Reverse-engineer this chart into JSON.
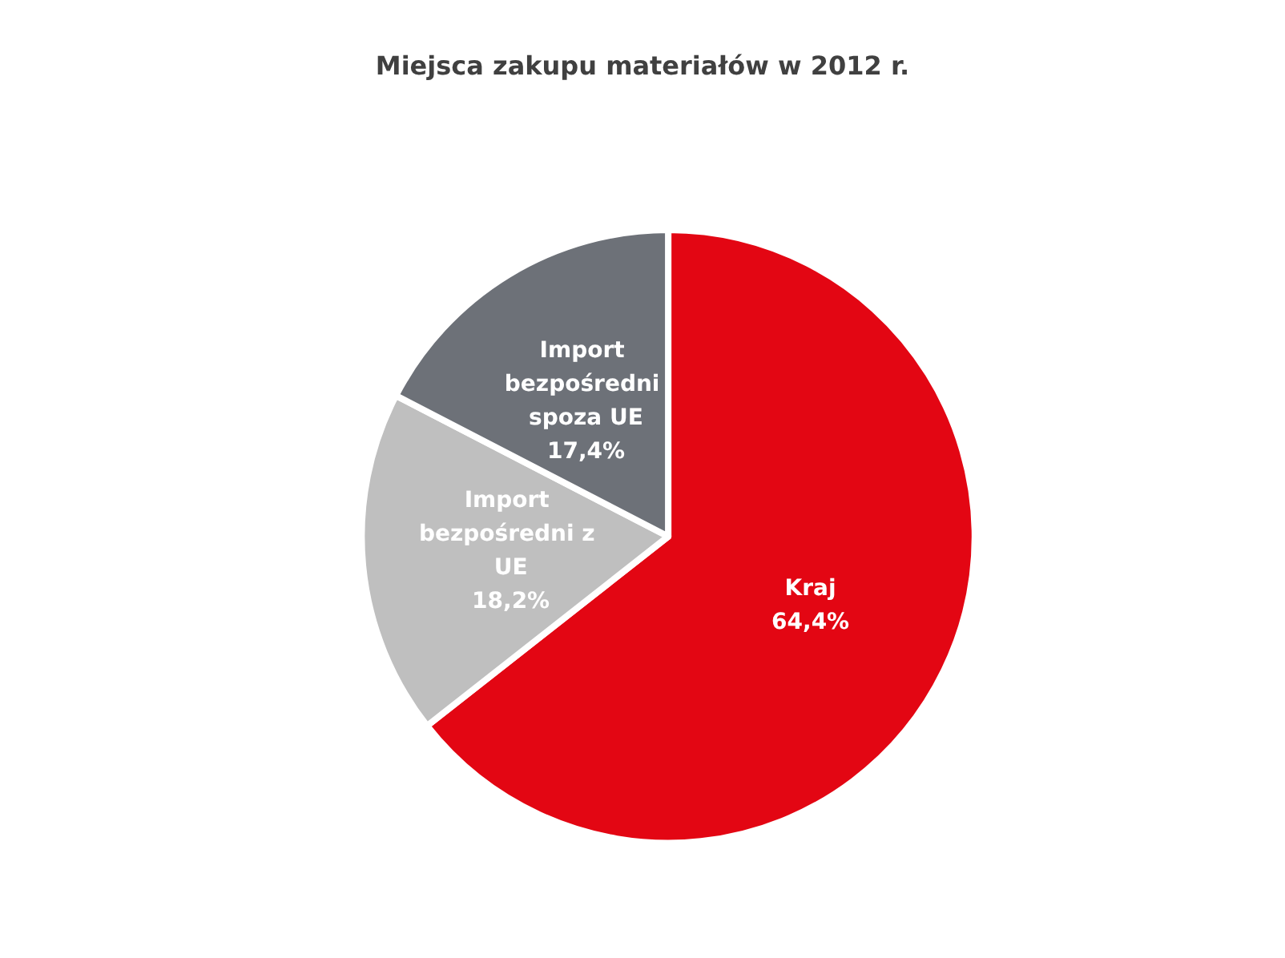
{
  "chart_data": {
    "type": "pie",
    "title": "Miejsca zakupu materiałów w 2012 r.",
    "categories": [
      "Kraj",
      "Import bezpośredni z UE",
      "Import bezpośredni spoza UE"
    ],
    "values": [
      64.4,
      18.2,
      17.4
    ],
    "value_labels": [
      "64,4%",
      "18,2%",
      "17,4%"
    ],
    "colors": [
      "#e30613",
      "#bfbfbf",
      "#6d7178"
    ],
    "legend": false
  }
}
